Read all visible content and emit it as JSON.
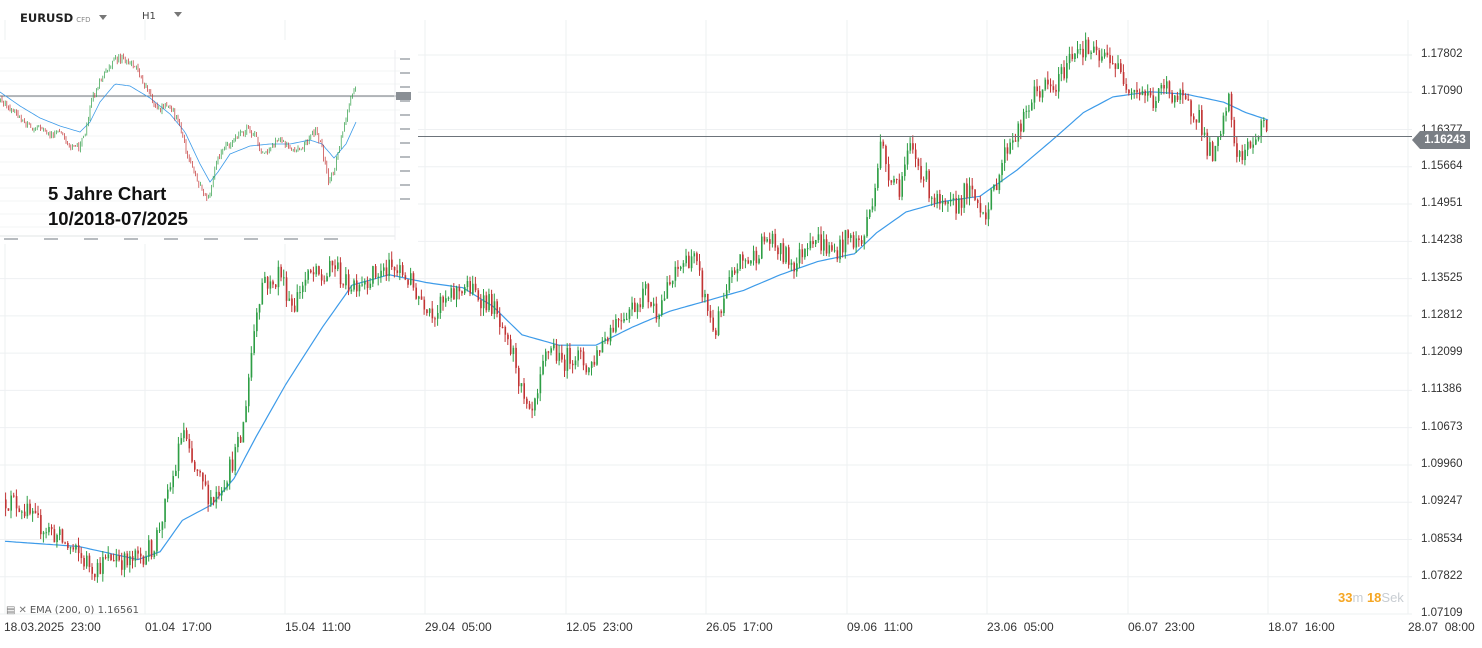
{
  "header": {
    "symbol": "EURUSD",
    "symbol_suffix": "CFD",
    "timeframe": "H1"
  },
  "price_tag": "1.16243",
  "partial_label": "1.16377",
  "timer": {
    "minutes": "33",
    "minutes_unit": "m",
    "seconds": "18",
    "seconds_unit": "Sek"
  },
  "indicator_legend": "EMA (200, 0) 1.16561",
  "inset": {
    "title_line1": "5 Jahre Chart",
    "title_line2": "10/2018-07/2025"
  },
  "colors": {
    "up": "#2e9e45",
    "down": "#c23434",
    "ema": "#3d9be9",
    "price_line": "#6c737a",
    "grid": "#eef0f2",
    "timer": "#f5a623"
  },
  "chart_data": {
    "type": "candlestick",
    "title": "EURUSD CFD H1",
    "y_axis": {
      "ticks": [
        "1.17802",
        "1.17090",
        "1.16377",
        "1.15664",
        "1.14951",
        "1.14238",
        "1.13525",
        "1.12812",
        "1.12099",
        "1.11386",
        "1.10673",
        "1.09960",
        "1.09247",
        "1.08534",
        "1.07822",
        "1.07109"
      ],
      "range": [
        1.07109,
        1.17802
      ]
    },
    "x_axis": {
      "ticks": [
        "18.03.2025  23:00",
        "01.04  17:00",
        "15.04  11:00",
        "29.04  05:00",
        "12.05  23:00",
        "26.05  17:00",
        "09.06  11:00",
        "23.06  05:00",
        "06.07  23:00",
        "18.07  16:00",
        "28.07  08:00"
      ]
    },
    "current_price": 1.16243,
    "price_path": [
      [
        0,
        1.093
      ],
      [
        2,
        1.092
      ],
      [
        4,
        1.0885
      ],
      [
        6,
        1.0872
      ],
      [
        8,
        1.0845
      ],
      [
        10,
        1.082
      ],
      [
        12,
        1.08
      ],
      [
        13.5,
        1.081
      ],
      [
        15,
        1.0825
      ],
      [
        16.5,
        1.0805
      ],
      [
        18,
        1.082
      ],
      [
        20,
        1.084
      ],
      [
        21.5,
        1.091
      ],
      [
        23,
        1.099
      ],
      [
        24,
        1.107
      ],
      [
        25,
        1.1
      ],
      [
        26.5,
        1.096
      ],
      [
        28,
        1.093
      ],
      [
        30,
        1.098
      ],
      [
        32,
        1.105
      ],
      [
        33,
        1.118
      ],
      [
        34,
        1.13
      ],
      [
        35,
        1.136
      ],
      [
        36,
        1.133
      ],
      [
        37,
        1.137
      ],
      [
        38,
        1.133
      ],
      [
        39,
        1.13
      ],
      [
        40,
        1.134
      ],
      [
        41.5,
        1.136
      ],
      [
        43,
        1.135
      ],
      [
        44.5,
        1.138
      ],
      [
        46,
        1.134
      ],
      [
        48,
        1.135
      ],
      [
        50,
        1.136
      ],
      [
        52,
        1.137
      ],
      [
        54,
        1.136
      ],
      [
        56,
        1.132
      ],
      [
        58,
        1.129
      ],
      [
        60,
        1.131
      ],
      [
        62,
        1.134
      ],
      [
        64,
        1.132
      ],
      [
        66,
        1.13
      ],
      [
        67.5,
        1.123
      ],
      [
        69,
        1.12
      ],
      [
        70,
        1.112
      ],
      [
        71,
        1.108
      ],
      [
        72,
        1.112
      ],
      [
        73,
        1.12
      ],
      [
        74,
        1.123
      ],
      [
        75,
        1.119
      ],
      [
        77,
        1.121
      ],
      [
        79,
        1.118
      ],
      [
        81,
        1.124
      ],
      [
        83,
        1.128
      ],
      [
        85,
        1.13
      ],
      [
        86.5,
        1.133
      ],
      [
        88,
        1.129
      ],
      [
        90,
        1.134
      ],
      [
        91.5,
        1.138
      ],
      [
        93,
        1.14
      ],
      [
        94.5,
        1.132
      ],
      [
        96,
        1.125
      ],
      [
        97,
        1.129
      ],
      [
        98,
        1.134
      ],
      [
        99,
        1.138
      ],
      [
        101,
        1.139
      ],
      [
        103,
        1.143
      ],
      [
        105,
        1.14
      ],
      [
        107,
        1.138
      ],
      [
        109,
        1.144
      ],
      [
        110.5,
        1.142
      ],
      [
        112,
        1.14
      ],
      [
        114,
        1.143
      ],
      [
        116,
        1.142
      ],
      [
        117.5,
        1.152
      ],
      [
        118.5,
        1.161
      ],
      [
        119.5,
        1.156
      ],
      [
        121,
        1.153
      ],
      [
        122.5,
        1.16
      ],
      [
        124,
        1.156
      ],
      [
        125.5,
        1.151
      ],
      [
        127,
        1.148
      ],
      [
        128.5,
        1.149
      ],
      [
        130,
        1.152
      ],
      [
        131.5,
        1.15
      ],
      [
        133,
        1.148
      ],
      [
        134.5,
        1.156
      ],
      [
        136,
        1.162
      ],
      [
        137.5,
        1.164
      ],
      [
        139,
        1.17
      ],
      [
        140.5,
        1.172
      ],
      [
        142,
        1.171
      ],
      [
        143.5,
        1.176
      ],
      [
        145,
        1.18
      ],
      [
        146.5,
        1.179
      ],
      [
        148,
        1.177
      ],
      [
        149.5,
        1.178
      ],
      [
        151,
        1.174
      ],
      [
        152.5,
        1.172
      ],
      [
        154,
        1.171
      ],
      [
        155.5,
        1.169
      ],
      [
        157,
        1.172
      ],
      [
        158.5,
        1.17
      ],
      [
        160,
        1.168
      ],
      [
        161.5,
        1.167
      ],
      [
        162.5,
        1.161
      ],
      [
        163.5,
        1.158
      ],
      [
        164.5,
        1.162
      ],
      [
        165.5,
        1.17
      ],
      [
        166.5,
        1.16
      ],
      [
        167.5,
        1.158
      ],
      [
        168.5,
        1.161
      ],
      [
        169.5,
        1.163
      ],
      [
        170.5,
        1.166
      ],
      [
        171,
        1.1624
      ]
    ],
    "ema_path": [
      [
        0,
        1.085
      ],
      [
        10,
        1.084
      ],
      [
        18,
        1.0815
      ],
      [
        21,
        1.083
      ],
      [
        24,
        1.089
      ],
      [
        28,
        1.092
      ],
      [
        31,
        1.097
      ],
      [
        34,
        1.105
      ],
      [
        38,
        1.115
      ],
      [
        43,
        1.126
      ],
      [
        47,
        1.134
      ],
      [
        52,
        1.136
      ],
      [
        57,
        1.1345
      ],
      [
        62,
        1.1335
      ],
      [
        66,
        1.13
      ],
      [
        70,
        1.1245
      ],
      [
        75,
        1.1225
      ],
      [
        80,
        1.1225
      ],
      [
        85,
        1.126
      ],
      [
        90,
        1.129
      ],
      [
        95,
        1.131
      ],
      [
        100,
        1.133
      ],
      [
        105,
        1.136
      ],
      [
        110,
        1.1385
      ],
      [
        115,
        1.14
      ],
      [
        118,
        1.144
      ],
      [
        122,
        1.148
      ],
      [
        127,
        1.15
      ],
      [
        132,
        1.151
      ],
      [
        137,
        1.156
      ],
      [
        142,
        1.162
      ],
      [
        146,
        1.167
      ],
      [
        150,
        1.17
      ],
      [
        155,
        1.171
      ],
      [
        160,
        1.1705
      ],
      [
        165,
        1.169
      ],
      [
        168,
        1.167
      ],
      [
        171,
        1.1656
      ]
    ]
  }
}
